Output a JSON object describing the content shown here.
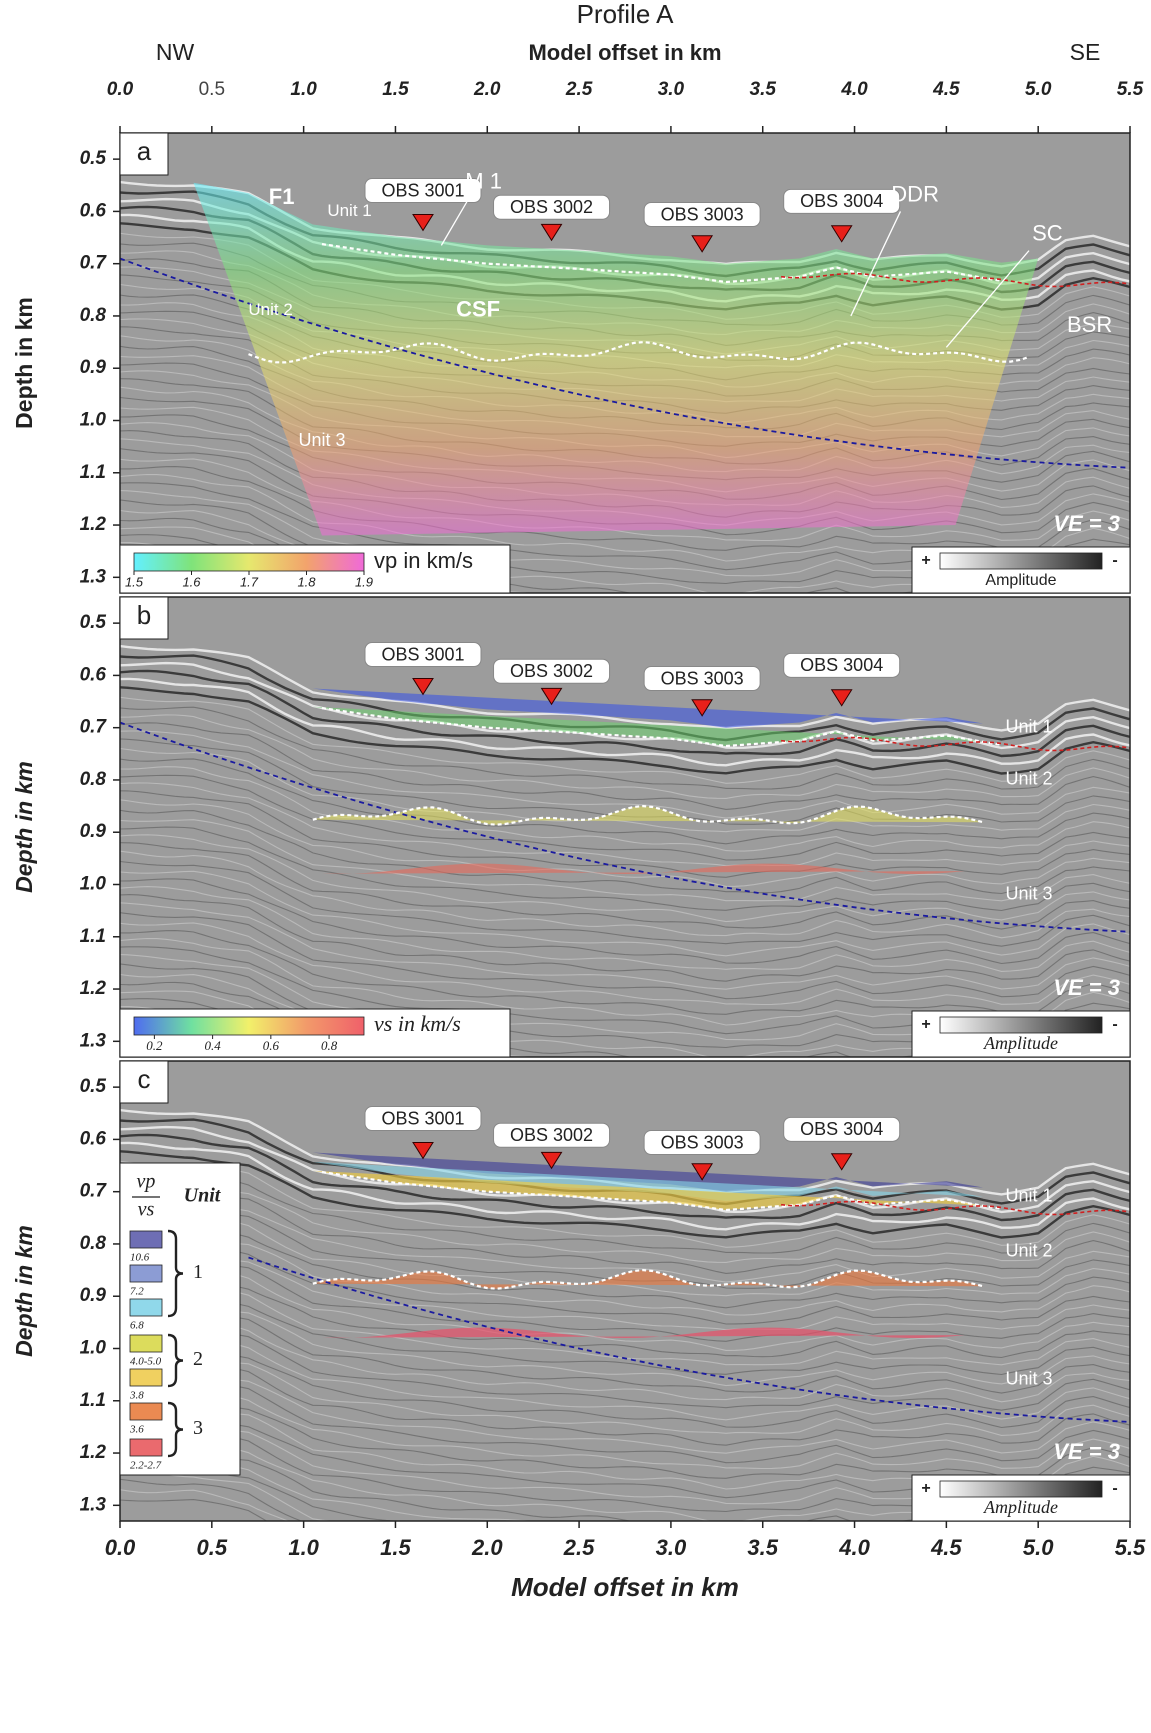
{
  "chart_data": [
    {
      "type": "seismic-section",
      "title": "Profile A",
      "left_label": "NW",
      "right_label": "SE",
      "xlabel": "Model offset in km",
      "xlim": [
        0,
        5.5
      ],
      "xticks": [
        {
          "value": 0,
          "label": "0.0"
        },
        0.5,
        {
          "value": 1,
          "label": "1.0"
        },
        1.5,
        {
          "value": 2,
          "label": "2.0"
        },
        2.5,
        {
          "value": 3,
          "label": "3.0"
        },
        3.5,
        {
          "value": 4,
          "label": "4.0"
        },
        4.5,
        {
          "value": 5,
          "label": "5.0"
        },
        5.5
      ],
      "panel_label": "a",
      "ylabel": "Depth in km",
      "ylim": [
        0.45,
        1.33
      ],
      "yticks": [
        0.5,
        0.6,
        0.7,
        0.8,
        0.9,
        {
          "value": 1,
          "label": "1.0"
        },
        1.1,
        1.2,
        1.3
      ],
      "ve": "VE = 3",
      "obs": [
        {
          "label": "OBS 3001",
          "x": 1.65
        },
        {
          "label": "OBS 3002",
          "x": 2.35
        },
        {
          "label": "OBS 3003",
          "x": 3.17
        },
        {
          "label": "OBS 3004",
          "x": 3.93
        }
      ],
      "annotations": [
        "F1",
        "M 1",
        "Unit 1",
        "DDR",
        "SC",
        "Unit 2",
        "CSF",
        "BSR",
        "Unit 3"
      ],
      "colorbar": {
        "label": "vp in km/s",
        "lim": [
          1.5,
          1.9
        ],
        "ticks": [
          1.5,
          1.6,
          1.7,
          1.8,
          1.9
        ],
        "colors": [
          "#63f0ff",
          "#7fe37a",
          "#e6e86e",
          "#f2a36c",
          "#f06ad8"
        ]
      },
      "amplitude": {
        "plus": "+",
        "minus": "-",
        "label": "Amplitude"
      }
    },
    {
      "type": "seismic-section",
      "xlim": [
        0,
        5.5
      ],
      "panel_label": "b",
      "ylabel": "Depth in km",
      "ylim": [
        0.45,
        1.33
      ],
      "yticks": [
        0.5,
        0.6,
        0.7,
        0.8,
        0.9,
        {
          "value": 1,
          "label": "1.0"
        },
        1.1,
        1.2,
        1.3
      ],
      "ve": "VE = 3",
      "obs": [
        {
          "label": "OBS 3001",
          "x": 1.65
        },
        {
          "label": "OBS 3002",
          "x": 2.35
        },
        {
          "label": "OBS 3003",
          "x": 3.17
        },
        {
          "label": "OBS 3004",
          "x": 3.93
        }
      ],
      "annotations": [
        "Unit 1",
        "Unit 2",
        "Unit 3"
      ],
      "colorbar": {
        "label": "vs in km/s",
        "lim": [
          0.13,
          0.92
        ],
        "ticks": [
          0.2,
          0.4,
          0.6,
          0.8
        ],
        "colors": [
          "#4f6cf0",
          "#6fe0a0",
          "#f2f06a",
          "#f29a6a",
          "#f0606a"
        ]
      },
      "amplitude": {
        "plus": "+",
        "minus": "-",
        "label": "Amplitude"
      }
    },
    {
      "type": "seismic-section",
      "xlabel": "Model offset in km",
      "xlim": [
        0,
        5.5
      ],
      "xticks": [
        {
          "value": 0,
          "label": "0.0"
        },
        0.5,
        {
          "value": 1,
          "label": "1.0"
        },
        1.5,
        {
          "value": 2,
          "label": "2.0"
        },
        2.5,
        {
          "value": 3,
          "label": "3.0"
        },
        3.5,
        {
          "value": 4,
          "label": "4.0"
        },
        4.5,
        {
          "value": 5,
          "label": "5.0"
        },
        5.5
      ],
      "panel_label": "c",
      "ylabel": "Depth in km",
      "ylim": [
        0.45,
        1.33
      ],
      "yticks": [
        0.5,
        0.6,
        0.7,
        0.8,
        0.9,
        {
          "value": 1,
          "label": "1.0"
        },
        1.1,
        1.2,
        1.3
      ],
      "ve": "VE = 3",
      "obs": [
        {
          "label": "OBS 3001",
          "x": 1.65
        },
        {
          "label": "OBS 3002",
          "x": 2.35
        },
        {
          "label": "OBS 3003",
          "x": 3.17
        },
        {
          "label": "OBS 3004",
          "x": 3.93
        }
      ],
      "annotations": [
        "Unit 1",
        "Unit 2",
        "Unit 3"
      ],
      "legend": {
        "ratio_top": "vp",
        "ratio_bottom": "vs",
        "unit_header": "Unit",
        "items": [
          {
            "label": "10.6",
            "color": "#6e6eb4"
          },
          {
            "label": "7.2",
            "color": "#8c9cd4"
          },
          {
            "label": "6.8",
            "color": "#90d8ea"
          },
          {
            "label": "4.0-5.0",
            "color": "#dcdc5c"
          },
          {
            "label": "3.8",
            "color": "#f0d060"
          },
          {
            "label": "3.6",
            "color": "#ea8a52"
          },
          {
            "label": "2.2-2.7",
            "color": "#ea6a6e"
          }
        ],
        "units": [
          1,
          2,
          3
        ]
      },
      "amplitude": {
        "plus": "+",
        "minus": "-",
        "label": "Amplitude"
      }
    }
  ]
}
